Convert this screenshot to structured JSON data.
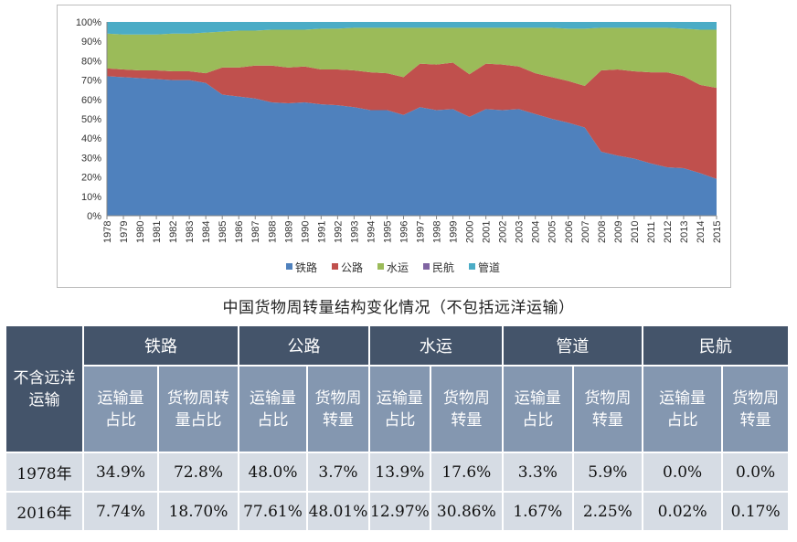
{
  "chart_data": {
    "type": "area",
    "stacked": "percent",
    "title": "",
    "x": [
      1978,
      1979,
      1980,
      1981,
      1982,
      1983,
      1984,
      1985,
      1986,
      1987,
      1988,
      1989,
      1990,
      1991,
      1992,
      1993,
      1994,
      1995,
      1996,
      1997,
      1998,
      1999,
      2000,
      2001,
      2002,
      2003,
      2004,
      2005,
      2006,
      2007,
      2008,
      2009,
      2010,
      2011,
      2012,
      2013,
      2014,
      2015
    ],
    "yticks": [
      "0%",
      "10%",
      "20%",
      "30%",
      "40%",
      "50%",
      "60%",
      "70%",
      "80%",
      "90%",
      "100%"
    ],
    "ylim": [
      0,
      100
    ],
    "legend_position": "bottom",
    "series": [
      {
        "name": "铁路",
        "color": "#4f81bd",
        "values": [
          72,
          71.5,
          71,
          70.5,
          70,
          70,
          68.5,
          62.5,
          61.5,
          60.5,
          58.5,
          58,
          58.5,
          57.5,
          57,
          56,
          54.5,
          54.5,
          52,
          56,
          54.5,
          55,
          51,
          55,
          54.5,
          55,
          52.5,
          50,
          48,
          45.5,
          33,
          31,
          29.5,
          27,
          25,
          24.5,
          22,
          19
        ]
      },
      {
        "name": "公路",
        "color": "#c0504d",
        "values": [
          4,
          4,
          4,
          4.5,
          4.5,
          4.5,
          5,
          14,
          15,
          17,
          19,
          18.5,
          18.5,
          18,
          18.5,
          19,
          19.5,
          19,
          19.5,
          22.5,
          23.5,
          24,
          22,
          23.5,
          23.5,
          22,
          21,
          21.5,
          21.5,
          21.5,
          42,
          44.5,
          45,
          47,
          49,
          47.5,
          45.5,
          47
        ]
      },
      {
        "name": "水运",
        "color": "#9bbb59",
        "values": [
          18,
          18,
          18.5,
          18.5,
          19.5,
          19.5,
          21,
          18.5,
          19,
          18,
          18.5,
          19.5,
          19,
          21,
          21,
          22,
          23,
          23.5,
          25.5,
          18.5,
          19,
          18,
          24,
          18.5,
          19,
          20,
          23.5,
          25.5,
          27,
          29.5,
          22,
          21.5,
          22.5,
          23,
          23,
          24.5,
          28.5,
          30
        ]
      },
      {
        "name": "民航",
        "color": "#8064a2",
        "values": [
          0,
          0,
          0,
          0,
          0,
          0,
          0,
          0,
          0,
          0,
          0,
          0,
          0,
          0,
          0,
          0,
          0,
          0,
          0,
          0,
          0,
          0,
          0,
          0,
          0,
          0,
          0,
          0,
          0,
          0,
          0,
          0,
          0,
          0,
          0,
          0,
          0,
          0
        ]
      },
      {
        "name": "管道",
        "color": "#4bacc6",
        "values": [
          6,
          6.5,
          6.5,
          6.5,
          6,
          6,
          5.5,
          5,
          4.5,
          4.5,
          4,
          4,
          4,
          3.5,
          3.5,
          3,
          3,
          3,
          3,
          3,
          3,
          3,
          3,
          3,
          3,
          3,
          3,
          3,
          3.5,
          3.5,
          3,
          3,
          3,
          3,
          3,
          3.5,
          4,
          4
        ]
      }
    ]
  },
  "caption": "中国货物周转量结构变化情况（不包括远洋运输）",
  "table": {
    "corner": "不含远洋运输",
    "groups": [
      "铁路",
      "公路",
      "水运",
      "管道",
      "民航"
    ],
    "subheaders": [
      "运输量占比",
      "货物周转量占比",
      "运输量占比",
      "货物周转量",
      "运输量占比",
      "货物周转量",
      "运输量占比",
      "货物周转量",
      "运输量占比",
      "货物周转量"
    ],
    "rows": [
      {
        "year": "1978年",
        "values": [
          "34.9%",
          "72.8%",
          "48.0%",
          "3.7%",
          "13.9%",
          "17.6%",
          "3.3%",
          "5.9%",
          "0.0%",
          "0.0%"
        ]
      },
      {
        "year": "2016年",
        "values": [
          "7.74%",
          "18.70%",
          "77.61%",
          "48.01%",
          "12.97%",
          "30.86%",
          "1.67%",
          "2.25%",
          "0.02%",
          "0.17%"
        ]
      }
    ]
  }
}
